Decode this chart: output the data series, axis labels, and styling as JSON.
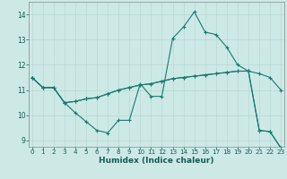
{
  "xlabel": "Humidex (Indice chaleur)",
  "x": [
    0,
    1,
    2,
    3,
    4,
    5,
    6,
    7,
    8,
    9,
    10,
    11,
    12,
    13,
    14,
    15,
    16,
    17,
    18,
    19,
    20,
    21,
    22,
    23
  ],
  "line1": [
    11.5,
    11.1,
    11.1,
    10.5,
    10.1,
    9.75,
    9.4,
    9.3,
    9.8,
    9.8,
    11.25,
    10.75,
    10.75,
    13.05,
    13.5,
    14.1,
    13.3,
    13.2,
    12.7,
    12.0,
    11.75,
    9.4,
    9.35,
    8.7
  ],
  "line2": [
    11.5,
    11.1,
    11.1,
    10.5,
    10.55,
    10.65,
    10.7,
    10.85,
    11.0,
    11.1,
    11.2,
    11.25,
    11.35,
    11.45,
    11.5,
    11.55,
    11.6,
    11.65,
    11.7,
    11.75,
    11.75,
    11.65,
    11.5,
    11.0
  ],
  "line3": [
    11.5,
    11.1,
    11.1,
    10.5,
    10.55,
    10.65,
    10.7,
    10.85,
    11.0,
    11.1,
    11.2,
    11.25,
    11.35,
    11.45,
    11.5,
    11.55,
    11.6,
    11.65,
    11.7,
    11.75,
    11.75,
    9.4,
    9.35,
    8.7
  ],
  "bg_color": "#cce9e6",
  "line_color": "#1a7a6e",
  "grid_major_color": "#b8d8d5",
  "ylim": [
    8.75,
    14.5
  ],
  "yticks": [
    9,
    10,
    11,
    12,
    13,
    14
  ],
  "xticks": [
    0,
    1,
    2,
    3,
    4,
    5,
    6,
    7,
    8,
    9,
    10,
    11,
    12,
    13,
    14,
    15,
    16,
    17,
    18,
    19,
    20,
    21,
    22,
    23
  ],
  "xlim": [
    -0.3,
    23.3
  ]
}
